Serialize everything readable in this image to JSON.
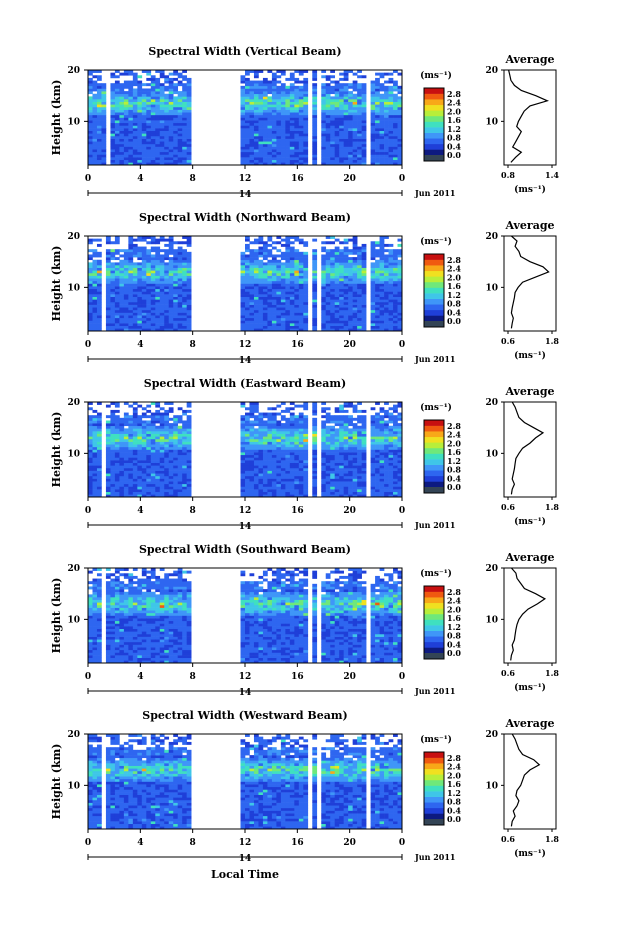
{
  "colors": {
    "scale": [
      "#0d1a80",
      "#1f3fd8",
      "#2e66f0",
      "#3f96f8",
      "#3fc6e8",
      "#3fe0c0",
      "#6fe87a",
      "#b8ee3a",
      "#f0e020",
      "#f8a818",
      "#f05a10",
      "#c81010"
    ],
    "under": "#334455",
    "avg_line": "#000000"
  },
  "shared": {
    "height_label": "Height (km)",
    "local_time_label": "Local Time",
    "units": "(ms⁻¹)",
    "date": "Jun 2011",
    "average_title": "Average",
    "avg_xlabel": "(ms⁻¹)",
    "y_ticks": [
      "20",
      "10"
    ],
    "x_ticks": [
      "0",
      "4",
      "8",
      "12",
      "16",
      "20",
      "0"
    ],
    "day_label": "14",
    "colorbar_ticks": [
      "2.8",
      "2.4",
      "2.0",
      "1.6",
      "1.2",
      "0.8",
      "0.4",
      "0.0"
    ]
  },
  "chart_data": [
    {
      "type": "heatmap",
      "title": "Spectral Width (Vertical Beam)",
      "ylabel": "Height (km)",
      "ylim": [
        1.5,
        20
      ],
      "xlim": [
        0,
        24
      ],
      "zlim": [
        0.0,
        3.0
      ],
      "gaps": [
        [
          1.3,
          1.7
        ],
        [
          7.9,
          11.5
        ],
        [
          16.7,
          17.1
        ],
        [
          17.5,
          17.8
        ],
        [
          21.3,
          21.7
        ]
      ],
      "avg": {
        "title": "Average",
        "xticks": [
          "0.8",
          "1.4"
        ],
        "xlim": [
          0.6,
          1.5
        ],
        "height": [
          2,
          3,
          4,
          5,
          6,
          7,
          8,
          9,
          10,
          11,
          12,
          13,
          14,
          15,
          16,
          17,
          18,
          19,
          20
        ],
        "value": [
          0.72,
          0.8,
          0.9,
          0.75,
          0.8,
          0.85,
          0.9,
          0.82,
          0.85,
          0.9,
          0.95,
          1.05,
          1.35,
          1.15,
          0.9,
          0.78,
          0.72,
          0.7,
          0.68
        ]
      }
    },
    {
      "type": "heatmap",
      "title": "Spectral Width (Northward Beam)",
      "ylabel": "Height (km)",
      "ylim": [
        1.5,
        20
      ],
      "xlim": [
        0,
        24
      ],
      "zlim": [
        0.0,
        3.0
      ],
      "gaps": [
        [
          1.1,
          1.5
        ],
        [
          7.9,
          11.5
        ],
        [
          16.7,
          17.1
        ],
        [
          17.5,
          17.8
        ],
        [
          21.3,
          21.6
        ]
      ],
      "avg": {
        "title": "Average",
        "xticks": [
          "0.6",
          "1.8"
        ],
        "xlim": [
          0.5,
          1.9
        ],
        "height": [
          2,
          3,
          4,
          5,
          6,
          7,
          8,
          9,
          10,
          11,
          12,
          13,
          14,
          15,
          16,
          17,
          18,
          19,
          20
        ],
        "value": [
          0.7,
          0.72,
          0.75,
          0.7,
          0.72,
          0.75,
          0.78,
          0.8,
          0.88,
          1.0,
          1.35,
          1.7,
          1.55,
          1.2,
          0.95,
          0.9,
          0.8,
          0.85,
          0.7
        ]
      }
    },
    {
      "type": "heatmap",
      "title": "Spectral Width (Eastward Beam)",
      "ylabel": "Height (km)",
      "ylim": [
        1.5,
        20
      ],
      "xlim": [
        0,
        24
      ],
      "zlim": [
        0.0,
        3.0
      ],
      "gaps": [
        [
          1.1,
          1.5
        ],
        [
          7.9,
          11.5
        ],
        [
          16.7,
          17.1
        ],
        [
          17.5,
          17.8
        ],
        [
          21.3,
          21.6
        ]
      ],
      "avg": {
        "title": "Average",
        "xticks": [
          "0.6",
          "1.8"
        ],
        "xlim": [
          0.5,
          1.9
        ],
        "height": [
          2,
          3,
          4,
          5,
          6,
          7,
          8,
          9,
          10,
          11,
          12,
          13,
          14,
          15,
          16,
          17,
          18,
          19,
          20
        ],
        "value": [
          0.7,
          0.72,
          0.78,
          0.72,
          0.75,
          0.78,
          0.8,
          0.82,
          0.9,
          1.0,
          1.2,
          1.35,
          1.55,
          1.3,
          1.05,
          0.9,
          0.85,
          0.8,
          0.72
        ]
      }
    },
    {
      "type": "heatmap",
      "title": "Spectral Width (Southward Beam)",
      "ylabel": "Height (km)",
      "ylim": [
        1.5,
        20
      ],
      "xlim": [
        0,
        24
      ],
      "zlim": [
        0.0,
        3.0
      ],
      "gaps": [
        [
          1.1,
          1.5
        ],
        [
          7.9,
          11.5
        ],
        [
          16.7,
          17.1
        ],
        [
          17.5,
          17.8
        ],
        [
          21.3,
          21.6
        ]
      ],
      "avg": {
        "title": "Average",
        "xticks": [
          "0.6",
          "1.8"
        ],
        "xlim": [
          0.5,
          1.9
        ],
        "height": [
          2,
          3,
          4,
          5,
          6,
          7,
          8,
          9,
          10,
          11,
          12,
          13,
          14,
          15,
          16,
          17,
          18,
          19,
          20
        ],
        "value": [
          0.68,
          0.7,
          0.75,
          0.72,
          0.78,
          0.8,
          0.82,
          0.85,
          0.9,
          1.0,
          1.15,
          1.4,
          1.6,
          1.35,
          1.05,
          0.95,
          0.85,
          0.82,
          0.7
        ]
      }
    },
    {
      "type": "heatmap",
      "title": "Spectral Width (Westward Beam)",
      "ylabel": "Height (km)",
      "ylim": [
        1.5,
        20
      ],
      "xlim": [
        0,
        24
      ],
      "zlim": [
        0.0,
        3.0
      ],
      "gaps": [
        [
          1.1,
          1.5
        ],
        [
          7.9,
          11.5
        ],
        [
          16.7,
          17.1
        ],
        [
          17.5,
          17.8
        ],
        [
          21.3,
          21.6
        ]
      ],
      "avg": {
        "title": "Average",
        "xticks": [
          "0.6",
          "1.8"
        ],
        "xlim": [
          0.5,
          1.9
        ],
        "height": [
          2,
          3,
          4,
          5,
          6,
          7,
          8,
          9,
          10,
          11,
          12,
          13,
          14,
          15,
          16,
          17,
          18,
          19,
          20
        ],
        "value": [
          0.7,
          0.72,
          0.8,
          0.75,
          0.85,
          0.9,
          0.82,
          0.85,
          0.95,
          1.0,
          1.05,
          1.2,
          1.45,
          1.3,
          1.0,
          0.9,
          0.85,
          0.8,
          0.72
        ]
      }
    }
  ]
}
